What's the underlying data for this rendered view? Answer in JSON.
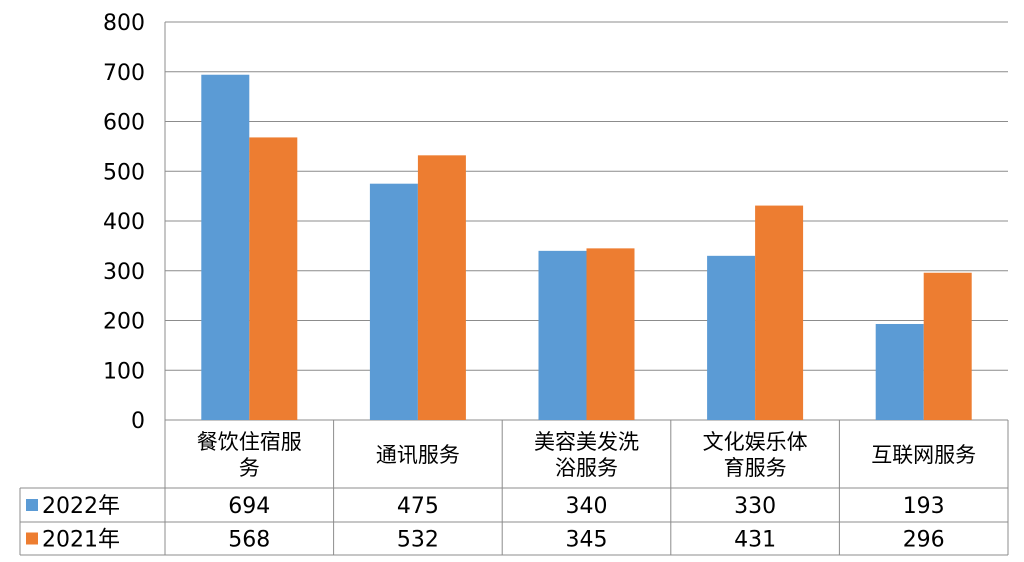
{
  "chart_data": {
    "type": "bar",
    "categories": [
      [
        "餐饮住宿服",
        "务"
      ],
      [
        "通讯服务"
      ],
      [
        "美容美发洗",
        "浴服务"
      ],
      [
        "文化娱乐体",
        "育服务"
      ],
      [
        "互联网服务"
      ]
    ],
    "series": [
      {
        "name": "2022年",
        "color": "#5B9BD5",
        "values": [
          694,
          475,
          340,
          330,
          193
        ]
      },
      {
        "name": "2021年",
        "color": "#ED7D31",
        "values": [
          568,
          532,
          345,
          431,
          296
        ]
      }
    ],
    "ylim": [
      0,
      800
    ],
    "yticks": [
      0,
      100,
      200,
      300,
      400,
      500,
      600,
      700,
      800
    ],
    "grid": true,
    "legend": "data-table-left"
  }
}
